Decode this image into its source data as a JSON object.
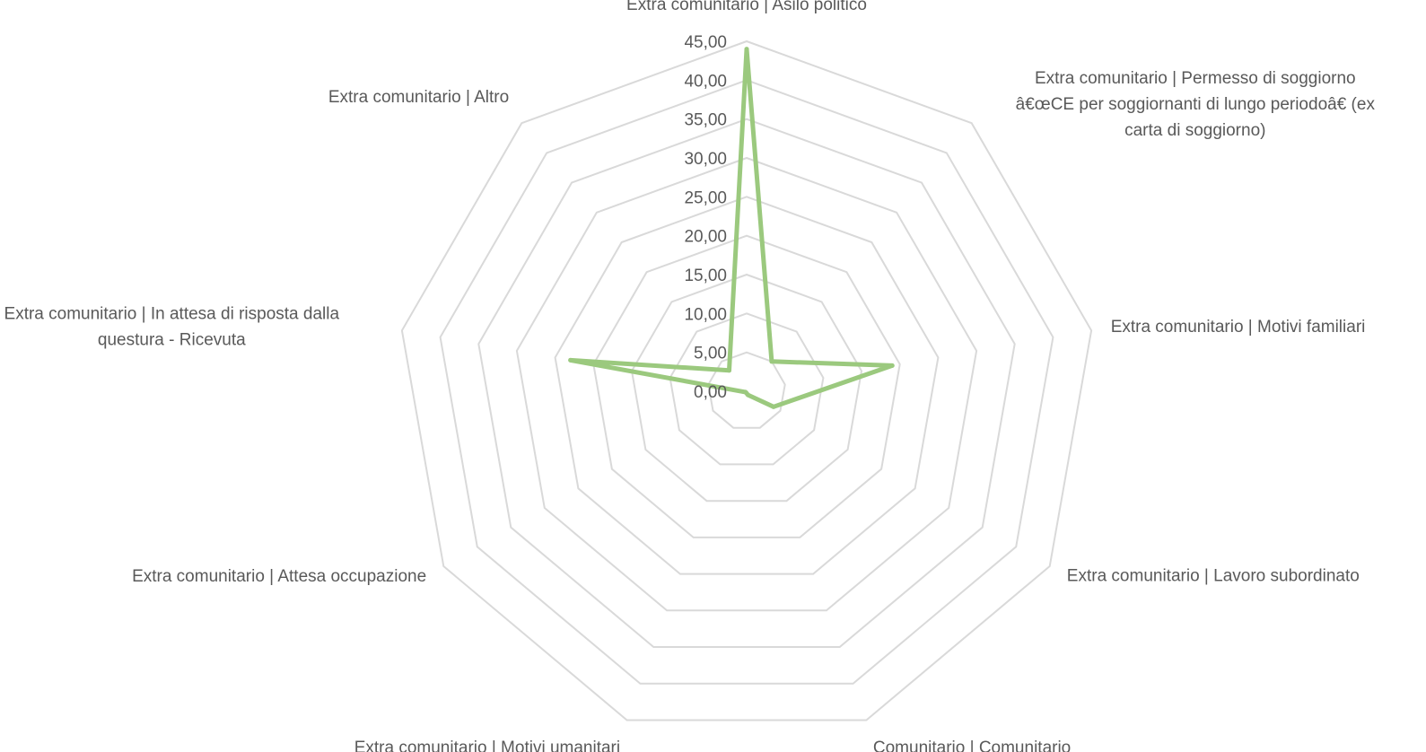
{
  "chart_data": {
    "type": "radar",
    "categories": [
      "Extra comunitario | Asilo politico",
      "Extra comunitario | Permesso di soggiorno â€œCE per soggiornanti di lungo periodoâ€ (ex carta di soggiorno)",
      "Extra comunitario | Motivi familiari",
      "Extra comunitario | Lavoro subordinato",
      "Comunitario | Comunitario",
      "Extra comunitario | Motivi umanitari",
      "Extra comunitario | Attesa occupazione",
      "Extra comunitario | In attesa di risposta dalla questura - Ricevuta",
      "Extra comunitario | Altro"
    ],
    "category_label_lines": [
      [
        "Extra comunitario | Asilo politico"
      ],
      [
        "Extra comunitario | Permesso di soggiorno",
        "â€œCE per soggiornanti di lungo periodoâ€ (ex",
        "carta di soggiorno)"
      ],
      [
        "Extra comunitario | Motivi familiari"
      ],
      [
        "Extra comunitario | Lavoro subordinato"
      ],
      [
        "Comunitario | Comunitario"
      ],
      [
        "Extra comunitario | Motivi umanitari"
      ],
      [
        "Extra comunitario | Attesa occupazione"
      ],
      [
        "Extra comunitario | In attesa di risposta dalla",
        "questura - Ricevuta"
      ],
      [
        "Extra comunitario | Altro"
      ]
    ],
    "series": [
      {
        "values": [
          44.0,
          5.0,
          19.0,
          4.0,
          0.5,
          0.2,
          0.2,
          23.0,
          3.5
        ],
        "color": "#9bc97e"
      }
    ],
    "ylim": [
      0,
      45
    ],
    "ticks": [
      "0,00",
      "5,00",
      "10,00",
      "15,00",
      "20,00",
      "25,00",
      "30,00",
      "35,00",
      "40,00",
      "45,00"
    ],
    "grid": true,
    "legend": "none"
  }
}
